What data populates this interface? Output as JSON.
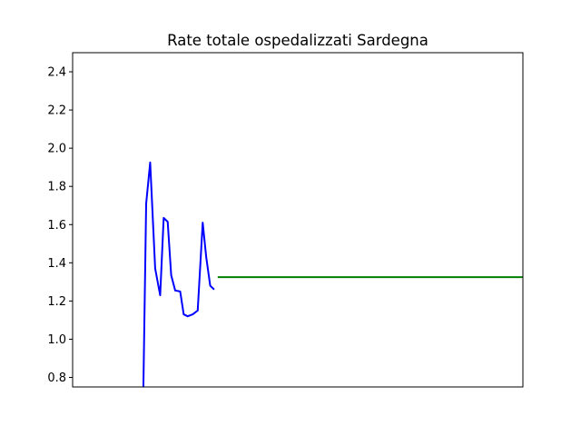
{
  "chart_data": {
    "type": "line",
    "title": "Rate totale ospedalizzati Sardegna",
    "xlabel": "",
    "ylabel": "",
    "ylim": [
      0.75,
      2.5
    ],
    "xlim": [
      -14,
      76
    ],
    "yticks": [
      "0.8",
      "1.0",
      "1.2",
      "1.4",
      "1.6",
      "1.8",
      "2.0",
      "2.2",
      "2.4"
    ],
    "xticks": [],
    "grid": false,
    "legend": "none",
    "series": [
      {
        "color": "#0000ff",
        "x": [
          0,
          0.7,
          1.5,
          2.5,
          3.5,
          4.2,
          5,
          5.7,
          6.5,
          7.5,
          8.2,
          9,
          10,
          11,
          12,
          12.7,
          13.5,
          14.3
        ],
        "y": [
          0.5,
          1.71,
          1.925,
          1.37,
          1.23,
          1.635,
          1.615,
          1.335,
          1.255,
          1.25,
          1.13,
          1.12,
          1.13,
          1.15,
          1.61,
          1.43,
          1.28,
          1.26
        ]
      },
      {
        "color": "#008000",
        "x": [
          15,
          76
        ],
        "y": [
          1.325,
          1.325
        ]
      }
    ]
  }
}
